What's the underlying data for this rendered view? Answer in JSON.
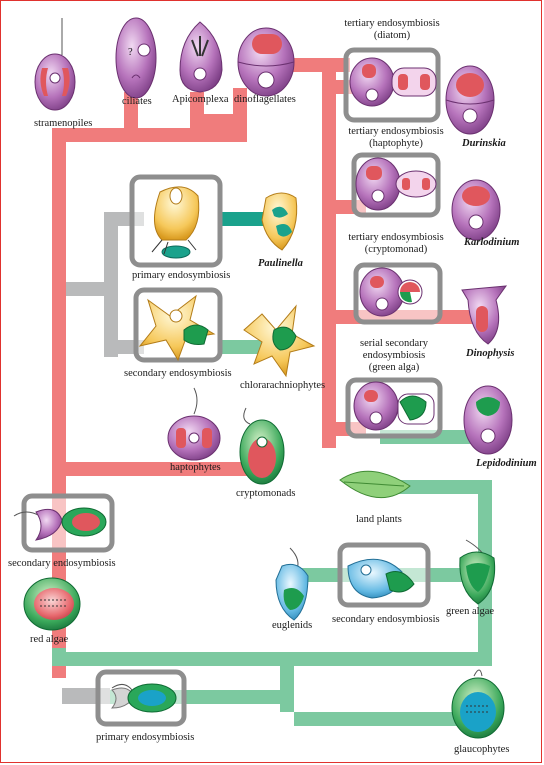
{
  "colors": {
    "red_lineage": "#f07c7c",
    "green_lineage": "#7cc9a0",
    "gray_lineage": "#b9babb",
    "teal_lineage": "#1aa28c",
    "box": "#8e8e8e",
    "purple_cell": "#b16fb5",
    "green_plastid": "#1e9c4e",
    "red_plastid": "#e0575d"
  },
  "labels": {
    "stramenopiles": "stramenopiles",
    "ciliates": "ciliates",
    "apicomplexa": "Apicomplexa",
    "dinoflagellates": "dinoflagellates",
    "tertiary_diatom": [
      "tertiary endosymbiosis",
      "(diatom)"
    ],
    "durinskia": "Durinskia",
    "tertiary_haptophyte": [
      "tertiary endosymbiosis",
      "(haptophyte)"
    ],
    "karlodinium": "Karlodinium",
    "tertiary_cryptomonad": [
      "tertiary endosymbiosis",
      "(cryptomonad)"
    ],
    "dinophysis": "Dinophysis",
    "serial_secondary": [
      "serial secondary",
      "endosymbiosis",
      "(green alga)"
    ],
    "lepidodinium": "Lepidodinium",
    "primary_endosymbiosis_paulinella": "primary endosymbiosis",
    "paulinella": "Paulinella",
    "secondary_endosymbiosis_chlorarachnio": "secondary endosymbiosis",
    "chlorarachniophytes": "chlorarachniophytes",
    "haptophytes": "haptophytes",
    "cryptomonads": "cryptomonads",
    "secondary_endosymbiosis_red": "secondary endosymbiosis",
    "red_algae": "red algae",
    "land_plants": "land plants",
    "euglenids": "euglenids",
    "secondary_endosymbiosis_green": "secondary endosymbiosis",
    "green_algae": "green algae",
    "primary_endosymbiosis_main": "primary endosymbiosis",
    "glaucophytes": "glaucophytes"
  },
  "icons": [
    "cell-icon",
    "plastid-icon",
    "leaf-icon",
    "flagellum-icon"
  ]
}
